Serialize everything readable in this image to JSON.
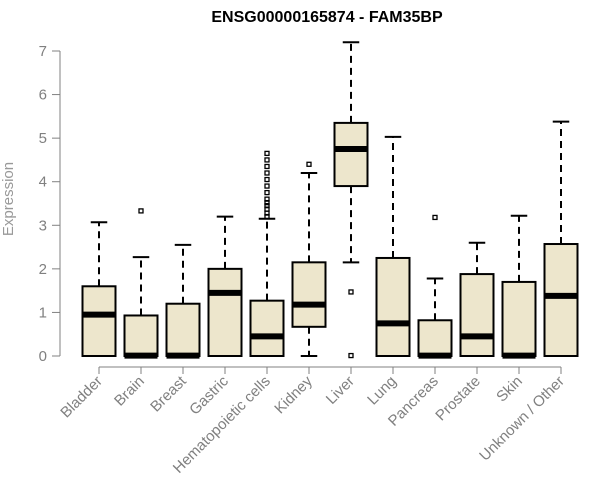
{
  "chart_data": {
    "type": "boxplot",
    "title": "ENSG00000165874 - FAM35BP",
    "xlabel": "",
    "ylabel": "Expression",
    "ylim": [
      0,
      7
    ],
    "yticks": [
      0,
      1,
      2,
      3,
      4,
      5,
      6,
      7
    ],
    "box_color": "#ede6cc",
    "categories": [
      "Bladder",
      "Brain",
      "Breast",
      "Gastric",
      "Hematopoietic cells",
      "Kidney",
      "Liver",
      "Lung",
      "Pancreas",
      "Prostate",
      "Skin",
      "Unknown / Other"
    ],
    "boxes": [
      {
        "name": "Bladder",
        "min": 0,
        "q1": 0,
        "median": 0.95,
        "q3": 1.6,
        "max": 3.07,
        "outliers": []
      },
      {
        "name": "Brain",
        "min": 0,
        "q1": 0,
        "median": 0.01,
        "q3": 0.93,
        "max": 2.27,
        "outliers": [
          3.33
        ]
      },
      {
        "name": "Breast",
        "min": 0,
        "q1": 0,
        "median": 0.01,
        "q3": 1.2,
        "max": 2.55,
        "outliers": []
      },
      {
        "name": "Gastric",
        "min": 0,
        "q1": 0,
        "median": 1.45,
        "q3": 2.0,
        "max": 3.2,
        "outliers": []
      },
      {
        "name": "Hematopoietic cells",
        "min": 0,
        "q1": 0,
        "median": 0.45,
        "q3": 1.27,
        "max": 3.15,
        "outliers": [
          3.2,
          3.28,
          3.37,
          3.45,
          3.52,
          3.6,
          3.75,
          3.9,
          4.05,
          4.2,
          4.35,
          4.5,
          4.65
        ]
      },
      {
        "name": "Kidney",
        "min": 0,
        "q1": 0.67,
        "median": 1.18,
        "q3": 2.15,
        "max": 4.2,
        "outliers": [
          4.4
        ]
      },
      {
        "name": "Liver",
        "min": 2.15,
        "q1": 3.9,
        "median": 4.75,
        "q3": 5.35,
        "max": 7.2,
        "outliers": [
          1.47,
          0.01
        ]
      },
      {
        "name": "Lung",
        "min": 0,
        "q1": 0,
        "median": 0.75,
        "q3": 2.25,
        "max": 5.03,
        "outliers": []
      },
      {
        "name": "Pancreas",
        "min": 0,
        "q1": 0,
        "median": 0.01,
        "q3": 0.82,
        "max": 1.78,
        "outliers": [
          3.18
        ]
      },
      {
        "name": "Prostate",
        "min": 0,
        "q1": 0,
        "median": 0.45,
        "q3": 1.88,
        "max": 2.6,
        "outliers": []
      },
      {
        "name": "Skin",
        "min": 0,
        "q1": 0,
        "median": 0.01,
        "q3": 1.7,
        "max": 3.22,
        "outliers": []
      },
      {
        "name": "Unknown / Other",
        "min": 0,
        "q1": 0,
        "median": 1.38,
        "q3": 2.57,
        "max": 5.38,
        "outliers": []
      }
    ]
  }
}
